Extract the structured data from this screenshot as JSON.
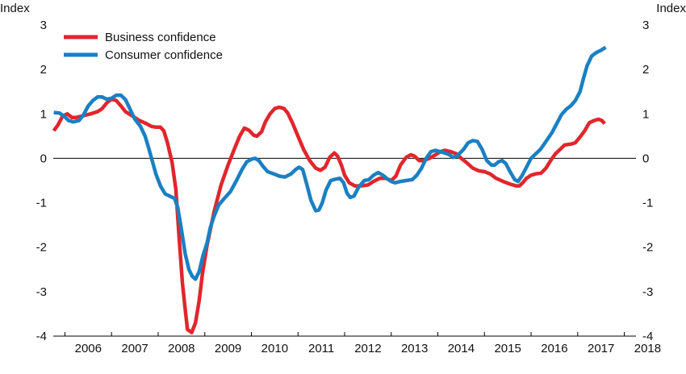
{
  "chart_data": {
    "type": "line",
    "y_unit_left": "Index",
    "y_unit_right": "Index",
    "ylim": [
      -4,
      3
    ],
    "yticks": [
      3,
      2,
      1,
      0,
      -1,
      -2,
      -3,
      -4
    ],
    "ytick_labels": [
      "3",
      "2",
      "1",
      "0",
      "-1",
      "-2",
      "-3",
      "-4"
    ],
    "xlim": [
      2005.75,
      2018.25
    ],
    "xtick_labels": [
      "2006",
      "2007",
      "2008",
      "2009",
      "2010",
      "2011",
      "2012",
      "2013",
      "2014",
      "2015",
      "2016",
      "2017",
      "2018"
    ],
    "grid": false,
    "zero_line": true,
    "legend_position": "top-left",
    "series": [
      {
        "name": "Business confidence",
        "color": "#e0262c",
        "points": [
          [
            2005.76,
            0.62
          ],
          [
            2005.85,
            0.75
          ],
          [
            2005.95,
            0.95
          ],
          [
            2006.05,
            1.0
          ],
          [
            2006.15,
            0.92
          ],
          [
            2006.25,
            0.92
          ],
          [
            2006.4,
            0.96
          ],
          [
            2006.55,
            1.0
          ],
          [
            2006.7,
            1.05
          ],
          [
            2006.8,
            1.12
          ],
          [
            2006.9,
            1.25
          ],
          [
            2007.0,
            1.33
          ],
          [
            2007.1,
            1.3
          ],
          [
            2007.2,
            1.18
          ],
          [
            2007.3,
            1.05
          ],
          [
            2007.45,
            0.95
          ],
          [
            2007.6,
            0.85
          ],
          [
            2007.75,
            0.78
          ],
          [
            2007.85,
            0.72
          ],
          [
            2007.95,
            0.7
          ],
          [
            2008.05,
            0.7
          ],
          [
            2008.12,
            0.62
          ],
          [
            2008.2,
            0.35
          ],
          [
            2008.3,
            -0.1
          ],
          [
            2008.38,
            -0.7
          ],
          [
            2008.45,
            -1.8
          ],
          [
            2008.52,
            -2.8
          ],
          [
            2008.58,
            -3.4
          ],
          [
            2008.63,
            -3.85
          ],
          [
            2008.72,
            -3.92
          ],
          [
            2008.8,
            -3.7
          ],
          [
            2008.88,
            -3.2
          ],
          [
            2008.95,
            -2.6
          ],
          [
            2009.05,
            -1.95
          ],
          [
            2009.2,
            -1.2
          ],
          [
            2009.35,
            -0.6
          ],
          [
            2009.5,
            -0.15
          ],
          [
            2009.65,
            0.25
          ],
          [
            2009.75,
            0.5
          ],
          [
            2009.85,
            0.68
          ],
          [
            2009.95,
            0.63
          ],
          [
            2010.05,
            0.52
          ],
          [
            2010.12,
            0.5
          ],
          [
            2010.22,
            0.6
          ],
          [
            2010.3,
            0.82
          ],
          [
            2010.4,
            1.0
          ],
          [
            2010.5,
            1.12
          ],
          [
            2010.6,
            1.15
          ],
          [
            2010.7,
            1.12
          ],
          [
            2010.78,
            1.02
          ],
          [
            2010.88,
            0.8
          ],
          [
            2011.0,
            0.5
          ],
          [
            2011.12,
            0.2
          ],
          [
            2011.25,
            -0.05
          ],
          [
            2011.38,
            -0.22
          ],
          [
            2011.48,
            -0.27
          ],
          [
            2011.58,
            -0.2
          ],
          [
            2011.68,
            0.02
          ],
          [
            2011.78,
            0.12
          ],
          [
            2011.85,
            0.05
          ],
          [
            2011.93,
            -0.15
          ],
          [
            2012.0,
            -0.38
          ],
          [
            2012.1,
            -0.55
          ],
          [
            2012.22,
            -0.62
          ],
          [
            2012.35,
            -0.62
          ],
          [
            2012.5,
            -0.6
          ],
          [
            2012.62,
            -0.52
          ],
          [
            2012.75,
            -0.45
          ],
          [
            2012.88,
            -0.45
          ],
          [
            2013.0,
            -0.5
          ],
          [
            2013.1,
            -0.4
          ],
          [
            2013.2,
            -0.15
          ],
          [
            2013.32,
            0.02
          ],
          [
            2013.42,
            0.08
          ],
          [
            2013.5,
            0.05
          ],
          [
            2013.6,
            -0.05
          ],
          [
            2013.7,
            -0.05
          ],
          [
            2013.82,
            0.0
          ],
          [
            2013.95,
            0.08
          ],
          [
            2014.05,
            0.15
          ],
          [
            2014.15,
            0.18
          ],
          [
            2014.28,
            0.15
          ],
          [
            2014.4,
            0.1
          ],
          [
            2014.5,
            0.0
          ],
          [
            2014.62,
            -0.1
          ],
          [
            2014.75,
            -0.22
          ],
          [
            2014.88,
            -0.28
          ],
          [
            2015.0,
            -0.3
          ],
          [
            2015.12,
            -0.35
          ],
          [
            2015.25,
            -0.45
          ],
          [
            2015.4,
            -0.52
          ],
          [
            2015.55,
            -0.58
          ],
          [
            2015.68,
            -0.62
          ],
          [
            2015.75,
            -0.62
          ],
          [
            2015.82,
            -0.55
          ],
          [
            2015.9,
            -0.45
          ],
          [
            2016.0,
            -0.38
          ],
          [
            2016.1,
            -0.35
          ],
          [
            2016.22,
            -0.33
          ],
          [
            2016.32,
            -0.22
          ],
          [
            2016.42,
            -0.05
          ],
          [
            2016.52,
            0.1
          ],
          [
            2016.62,
            0.2
          ],
          [
            2016.72,
            0.3
          ],
          [
            2016.85,
            0.32
          ],
          [
            2016.95,
            0.35
          ],
          [
            2017.05,
            0.48
          ],
          [
            2017.15,
            0.62
          ],
          [
            2017.25,
            0.8
          ],
          [
            2017.35,
            0.85
          ],
          [
            2017.45,
            0.88
          ],
          [
            2017.52,
            0.85
          ],
          [
            2017.58,
            0.78
          ]
        ]
      },
      {
        "name": "Consumer confidence",
        "color": "#1a80c3",
        "points": [
          [
            2005.76,
            1.03
          ],
          [
            2005.88,
            1.02
          ],
          [
            2005.98,
            0.95
          ],
          [
            2006.08,
            0.85
          ],
          [
            2006.18,
            0.82
          ],
          [
            2006.3,
            0.85
          ],
          [
            2006.4,
            0.98
          ],
          [
            2006.5,
            1.18
          ],
          [
            2006.6,
            1.3
          ],
          [
            2006.7,
            1.38
          ],
          [
            2006.8,
            1.38
          ],
          [
            2006.9,
            1.33
          ],
          [
            2007.0,
            1.35
          ],
          [
            2007.1,
            1.42
          ],
          [
            2007.2,
            1.42
          ],
          [
            2007.3,
            1.32
          ],
          [
            2007.4,
            1.1
          ],
          [
            2007.5,
            0.88
          ],
          [
            2007.62,
            0.72
          ],
          [
            2007.72,
            0.5
          ],
          [
            2007.8,
            0.22
          ],
          [
            2007.88,
            -0.08
          ],
          [
            2007.95,
            -0.35
          ],
          [
            2008.05,
            -0.62
          ],
          [
            2008.15,
            -0.8
          ],
          [
            2008.25,
            -0.85
          ],
          [
            2008.35,
            -0.9
          ],
          [
            2008.42,
            -1.1
          ],
          [
            2008.5,
            -1.6
          ],
          [
            2008.58,
            -2.15
          ],
          [
            2008.66,
            -2.5
          ],
          [
            2008.73,
            -2.65
          ],
          [
            2008.8,
            -2.72
          ],
          [
            2008.88,
            -2.55
          ],
          [
            2008.96,
            -2.2
          ],
          [
            2009.05,
            -1.9
          ],
          [
            2009.12,
            -1.55
          ],
          [
            2009.2,
            -1.3
          ],
          [
            2009.3,
            -1.05
          ],
          [
            2009.42,
            -0.9
          ],
          [
            2009.55,
            -0.75
          ],
          [
            2009.68,
            -0.5
          ],
          [
            2009.8,
            -0.25
          ],
          [
            2009.9,
            -0.08
          ],
          [
            2010.0,
            -0.02
          ],
          [
            2010.08,
            0.0
          ],
          [
            2010.16,
            -0.05
          ],
          [
            2010.25,
            -0.18
          ],
          [
            2010.35,
            -0.3
          ],
          [
            2010.48,
            -0.35
          ],
          [
            2010.6,
            -0.4
          ],
          [
            2010.72,
            -0.42
          ],
          [
            2010.85,
            -0.35
          ],
          [
            2010.95,
            -0.25
          ],
          [
            2011.02,
            -0.2
          ],
          [
            2011.1,
            -0.25
          ],
          [
            2011.18,
            -0.55
          ],
          [
            2011.28,
            -0.95
          ],
          [
            2011.38,
            -1.18
          ],
          [
            2011.45,
            -1.16
          ],
          [
            2011.52,
            -1.0
          ],
          [
            2011.6,
            -0.72
          ],
          [
            2011.7,
            -0.5
          ],
          [
            2011.8,
            -0.47
          ],
          [
            2011.9,
            -0.45
          ],
          [
            2011.98,
            -0.55
          ],
          [
            2012.05,
            -0.78
          ],
          [
            2012.12,
            -0.88
          ],
          [
            2012.2,
            -0.85
          ],
          [
            2012.3,
            -0.65
          ],
          [
            2012.42,
            -0.5
          ],
          [
            2012.52,
            -0.48
          ],
          [
            2012.62,
            -0.38
          ],
          [
            2012.72,
            -0.32
          ],
          [
            2012.82,
            -0.38
          ],
          [
            2012.9,
            -0.45
          ],
          [
            2013.0,
            -0.52
          ],
          [
            2013.08,
            -0.55
          ],
          [
            2013.2,
            -0.52
          ],
          [
            2013.32,
            -0.5
          ],
          [
            2013.45,
            -0.48
          ],
          [
            2013.55,
            -0.38
          ],
          [
            2013.65,
            -0.22
          ],
          [
            2013.75,
            0.0
          ],
          [
            2013.85,
            0.15
          ],
          [
            2013.95,
            0.18
          ],
          [
            2014.05,
            0.15
          ],
          [
            2014.15,
            0.12
          ],
          [
            2014.25,
            0.08
          ],
          [
            2014.32,
            0.02
          ],
          [
            2014.42,
            0.06
          ],
          [
            2014.55,
            0.2
          ],
          [
            2014.65,
            0.35
          ],
          [
            2014.75,
            0.4
          ],
          [
            2014.85,
            0.38
          ],
          [
            2014.95,
            0.2
          ],
          [
            2015.05,
            -0.05
          ],
          [
            2015.15,
            -0.15
          ],
          [
            2015.22,
            -0.15
          ],
          [
            2015.3,
            -0.08
          ],
          [
            2015.38,
            -0.05
          ],
          [
            2015.46,
            -0.12
          ],
          [
            2015.55,
            -0.3
          ],
          [
            2015.65,
            -0.48
          ],
          [
            2015.72,
            -0.52
          ],
          [
            2015.8,
            -0.4
          ],
          [
            2015.9,
            -0.2
          ],
          [
            2016.0,
            0.0
          ],
          [
            2016.1,
            0.1
          ],
          [
            2016.2,
            0.2
          ],
          [
            2016.32,
            0.38
          ],
          [
            2016.45,
            0.58
          ],
          [
            2016.55,
            0.78
          ],
          [
            2016.65,
            0.98
          ],
          [
            2016.75,
            1.1
          ],
          [
            2016.85,
            1.18
          ],
          [
            2016.95,
            1.3
          ],
          [
            2017.05,
            1.5
          ],
          [
            2017.12,
            1.78
          ],
          [
            2017.2,
            2.08
          ],
          [
            2017.3,
            2.3
          ],
          [
            2017.4,
            2.38
          ],
          [
            2017.5,
            2.43
          ],
          [
            2017.6,
            2.5
          ]
        ]
      }
    ]
  }
}
